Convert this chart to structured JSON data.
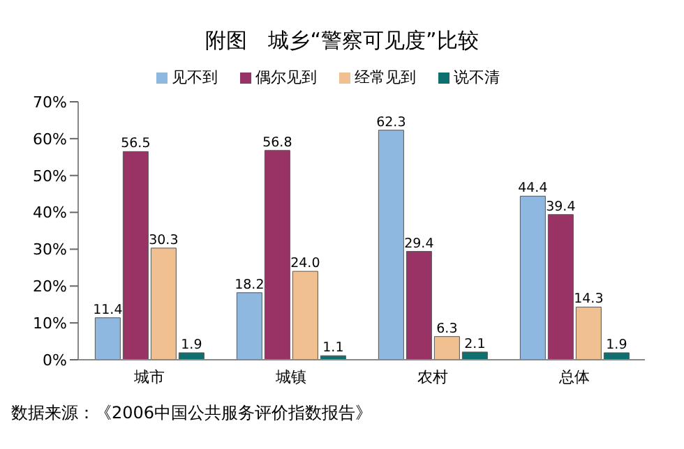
{
  "chart_data": {
    "type": "bar",
    "title": "附图　城乡“警察可见度”比较",
    "categories": [
      "城市",
      "城镇",
      "农村",
      "总体"
    ],
    "series": [
      {
        "name": "见不到",
        "color": "#8fb8e0",
        "values": [
          11.4,
          18.2,
          62.3,
          44.4
        ],
        "value_labels": [
          "11.4",
          "18.2",
          "62.3",
          "44.4"
        ]
      },
      {
        "name": "偶尔见到",
        "color": "#993366",
        "values": [
          56.5,
          56.8,
          29.4,
          39.4
        ],
        "value_labels": [
          "56.5",
          "56.8",
          "29.4",
          "39.4"
        ]
      },
      {
        "name": "经常见到",
        "color": "#f0c090",
        "values": [
          30.3,
          24.0,
          6.3,
          14.3
        ],
        "value_labels": [
          "30.3",
          "24.0",
          "6.3",
          "14.3"
        ]
      },
      {
        "name": "说不清",
        "color": "#0f6f6f",
        "values": [
          1.9,
          1.1,
          2.1,
          1.9
        ],
        "value_labels": [
          "1.9",
          "1.1",
          "2.1",
          "1.9"
        ]
      }
    ],
    "ylim": [
      0,
      70
    ],
    "yticks": [
      {
        "value": 0,
        "label": "0%"
      },
      {
        "value": 10,
        "label": "10%"
      },
      {
        "value": 20,
        "label": "20%"
      },
      {
        "value": 30,
        "label": "30%"
      },
      {
        "value": 40,
        "label": "40%"
      },
      {
        "value": 50,
        "label": "50%"
      },
      {
        "value": 60,
        "label": "60%"
      },
      {
        "value": 70,
        "label": "70%"
      }
    ],
    "grid": false,
    "legend": "top",
    "annotations": [
      "数据来源：《2006中国公共服务评价指数报告》"
    ]
  }
}
